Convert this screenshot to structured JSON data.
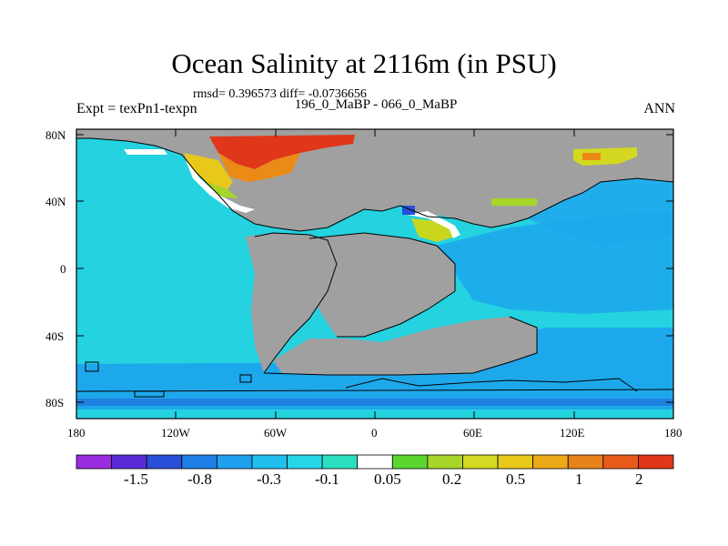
{
  "title": "Ocean Salinity at 2116m (in PSU)",
  "stats_text": "rmsd= 0.396573 diff= -0.0736656",
  "subtitle": "196_0_MaBP - 066_0_MaBP",
  "left_label": "Expt = texPn1-texpn",
  "right_label": "ANN",
  "lat_ticks": [
    "80N",
    "40N",
    "0",
    "40S",
    "80S"
  ],
  "lon_ticks": [
    "180",
    "120W",
    "60W",
    "0",
    "60E",
    "120E",
    "180"
  ],
  "colorbar": {
    "colors": [
      "#9b2be0",
      "#5a2bd8",
      "#2a4fd8",
      "#1e7ee6",
      "#1ea0ee",
      "#20bfee",
      "#24d6e6",
      "#2ae0c0",
      "#ffffff",
      "#5ad62e",
      "#a6d628",
      "#d4d820",
      "#e8c81a",
      "#ecaa18",
      "#e8821a",
      "#e85a1a",
      "#e0361a"
    ],
    "labels": [
      "-1.5",
      "-0.8",
      "-0.3",
      "-0.1",
      "0.05",
      "0.2",
      "0.5",
      "1",
      "2"
    ]
  },
  "chart_data": {
    "type": "heatmap",
    "title": "Ocean Salinity at 2116m (in PSU)",
    "xlabel": "",
    "ylabel": "",
    "x_range": [
      -180,
      180
    ],
    "y_range": [
      -90,
      90
    ],
    "x_ticks": [
      "180",
      "120W",
      "60W",
      "0",
      "60E",
      "120E",
      "180"
    ],
    "y_ticks": [
      "80N",
      "40N",
      "0",
      "40S",
      "80S"
    ],
    "colorbar_levels": [
      -1.5,
      -0.8,
      -0.3,
      -0.1,
      0.05,
      0.2,
      0.5,
      1,
      2
    ],
    "colors": {
      "land": "#a0a0a0",
      "ocean_background": "#24d2e0",
      "deep_ocean": "#1ea8ec",
      "high_positive": "#e0361a"
    }
  }
}
